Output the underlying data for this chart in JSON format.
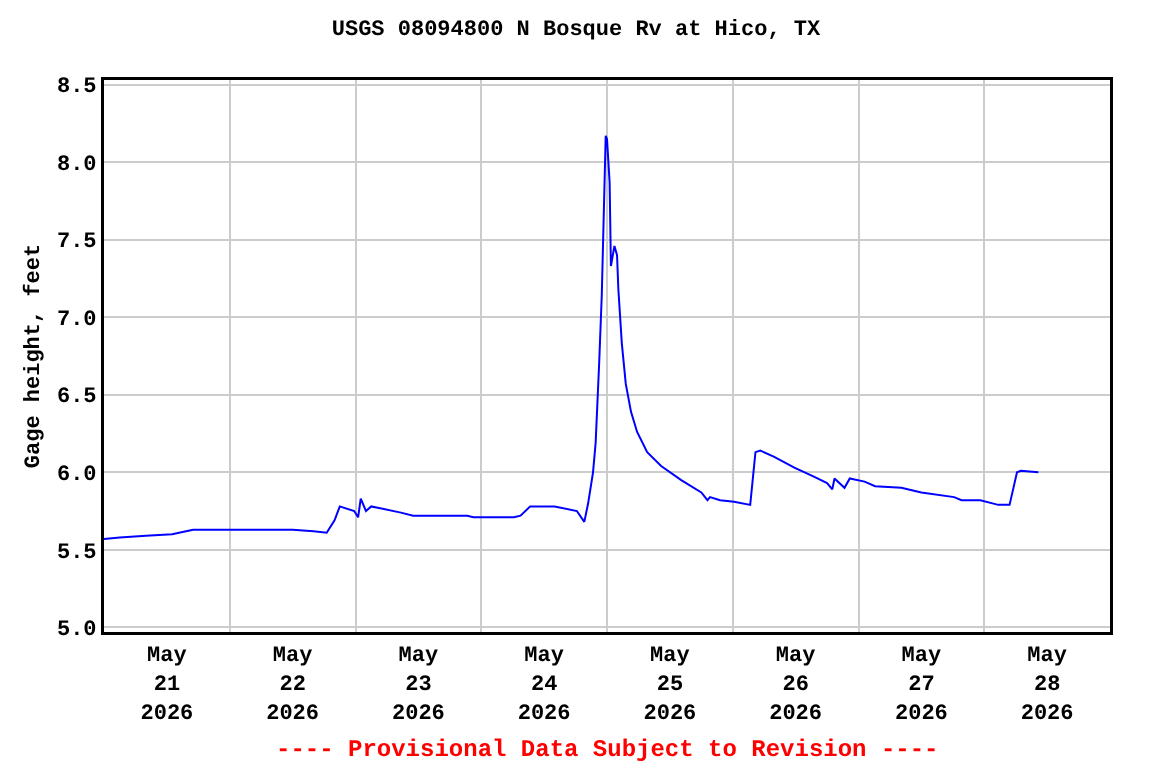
{
  "chart_data": {
    "type": "line",
    "title": "USGS 08094800 N Bosque Rv at Hico, TX",
    "ylabel": "Gage height, feet",
    "annotations": [
      "---- Provisional Data Subject to Revision ----"
    ],
    "x": [
      "2026-05-21T00:00",
      "2026-05-21T03:00",
      "2026-05-21T08:00",
      "2026-05-21T13:00",
      "2026-05-21T17:00",
      "2026-05-21T22:00",
      "2026-05-22T12:00",
      "2026-05-22T16:00",
      "2026-05-22T18:30",
      "2026-05-22T20:00",
      "2026-05-22T21:00",
      "2026-05-22T23:45",
      "2026-05-23T00:30",
      "2026-05-23T01:00",
      "2026-05-23T02:00",
      "2026-05-23T03:00",
      "2026-05-23T08:40",
      "2026-05-23T11:00",
      "2026-05-23T21:20",
      "2026-05-23T22:30",
      "2026-05-24T06:15",
      "2026-05-24T07:30",
      "2026-05-24T09:20",
      "2026-05-24T14:00",
      "2026-05-24T18:15",
      "2026-05-24T19:40",
      "2026-05-24T20:24",
      "2026-05-24T21:20",
      "2026-05-24T21:50",
      "2026-05-24T22:30",
      "2026-05-24T23:00",
      "2026-05-24T23:45",
      "2026-05-25T00:00",
      "2026-05-25T00:30",
      "2026-05-25T00:45",
      "2026-05-25T01:25",
      "2026-05-25T01:55",
      "2026-05-25T02:10",
      "2026-05-25T02:50",
      "2026-05-25T03:35",
      "2026-05-25T04:35",
      "2026-05-25T05:45",
      "2026-05-25T07:40",
      "2026-05-25T10:20",
      "2026-05-25T14:10",
      "2026-05-25T18:00",
      "2026-05-25T19:10",
      "2026-05-25T19:40",
      "2026-05-25T21:35",
      "2026-05-26T00:15",
      "2026-05-26T03:20",
      "2026-05-26T04:20",
      "2026-05-26T05:15",
      "2026-05-26T07:55",
      "2026-05-26T11:45",
      "2026-05-26T15:35",
      "2026-05-26T18:00",
      "2026-05-26T19:00",
      "2026-05-26T19:25",
      "2026-05-26T21:20",
      "2026-05-26T22:20",
      "2026-05-27T01:10",
      "2026-05-27T03:10",
      "2026-05-27T08:10",
      "2026-05-27T12:00",
      "2026-05-27T18:15",
      "2026-05-27T19:40",
      "2026-05-27T23:15",
      "2026-05-28T02:40",
      "2026-05-28T04:50",
      "2026-05-28T06:15",
      "2026-05-28T07:00",
      "2026-05-28T10:20"
    ],
    "series": [
      {
        "color": "#0000ff",
        "values": [
          5.57,
          5.58,
          5.59,
          5.6,
          5.63,
          5.63,
          5.63,
          5.62,
          5.61,
          5.69,
          5.78,
          5.75,
          5.71,
          5.83,
          5.75,
          5.78,
          5.74,
          5.72,
          5.72,
          5.71,
          5.71,
          5.72,
          5.78,
          5.78,
          5.75,
          5.68,
          5.8,
          6.0,
          6.19,
          6.7,
          7.14,
          8.17,
          8.15,
          7.87,
          7.33,
          7.46,
          7.4,
          7.18,
          6.83,
          6.57,
          6.39,
          6.26,
          6.13,
          6.04,
          5.95,
          5.87,
          5.82,
          5.84,
          5.82,
          5.81,
          5.79,
          6.13,
          6.14,
          6.1,
          6.03,
          5.97,
          5.93,
          5.89,
          5.96,
          5.9,
          5.96,
          5.94,
          5.91,
          5.9,
          5.87,
          5.84,
          5.82,
          5.82,
          5.79,
          5.79,
          6.0,
          6.01,
          6.0
        ]
      }
    ],
    "xlim": [
      "2026-05-21",
      "2026-05-29"
    ],
    "xticks": [
      {
        "value": "2026-05-21T12:00",
        "label": "May\n21\n2026"
      },
      {
        "value": "2026-05-22T12:00",
        "label": "May\n22\n2026"
      },
      {
        "value": "2026-05-23T12:00",
        "label": "May\n23\n2026"
      },
      {
        "value": "2026-05-24T12:00",
        "label": "May\n24\n2026"
      },
      {
        "value": "2026-05-25T12:00",
        "label": "May\n25\n2026"
      },
      {
        "value": "2026-05-26T12:00",
        "label": "May\n26\n2026"
      },
      {
        "value": "2026-05-27T12:00",
        "label": "May\n27\n2026"
      },
      {
        "value": "2026-05-28T12:00",
        "label": "May\n28\n2026"
      },
      {
        "value": "2026-05-22",
        "label": null
      },
      {
        "value": "2026-05-23",
        "label": null
      },
      {
        "value": "2026-05-24",
        "label": null
      },
      {
        "value": "2026-05-25",
        "label": null
      },
      {
        "value": "2026-05-26",
        "label": null
      },
      {
        "value": "2026-05-27",
        "label": null
      },
      {
        "value": "2026-05-28",
        "label": null
      }
    ],
    "ylim": [
      4.97,
      8.53
    ],
    "yticks": [
      {
        "value": 5.0,
        "label": "5.0"
      },
      5.5,
      {
        "value": 6.0,
        "label": "6.0"
      },
      6.5,
      {
        "value": 7.0,
        "label": "7.0"
      },
      7.5,
      {
        "value": 8.0,
        "label": "8.0"
      },
      8.5
    ],
    "grid": true,
    "line_style": "solid",
    "marker": "none"
  }
}
